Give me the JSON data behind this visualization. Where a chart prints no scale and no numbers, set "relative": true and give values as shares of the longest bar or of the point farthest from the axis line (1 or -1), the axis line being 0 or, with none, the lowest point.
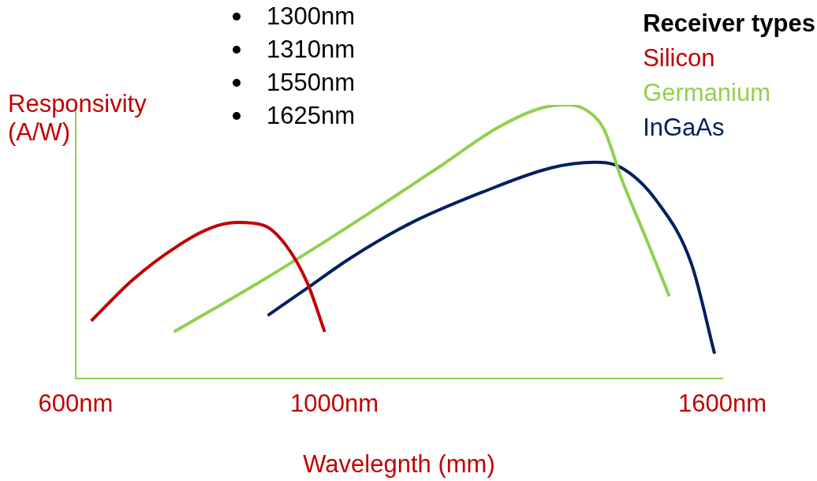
{
  "chart_data": {
    "type": "line",
    "relative": true,
    "xlabel": "Wavelegnth (mm)",
    "ylabel": "Responsivity (A/W)",
    "legend_title": "Receiver types",
    "legend": "top right",
    "grid": false,
    "marker": "none",
    "annotations": [
      "1300nm",
      "1310nm",
      "1550nm",
      "1625nm"
    ],
    "xlim": [
      600,
      1600
    ],
    "xticks": [
      {
        "value": 600,
        "label": "600nm"
      },
      {
        "value": 1000,
        "label": "1000nm"
      },
      {
        "value": 1600,
        "label": "1600nm"
      }
    ],
    "series": [
      {
        "name": "Silicon",
        "color": "#c00000",
        "x": [
          624,
          688,
          755,
          809,
          850,
          890,
          924,
          958,
          985
        ],
        "values": [
          0.21,
          0.36,
          0.48,
          0.55,
          0.57,
          0.56,
          0.49,
          0.35,
          0.17
        ]
      },
      {
        "name": "Germanium",
        "color": "#92d050",
        "x": [
          752,
          890,
          1025,
          1160,
          1255,
          1322,
          1362,
          1390,
          1417,
          1444,
          1484,
          1518
        ],
        "values": [
          0.17,
          0.36,
          0.56,
          0.77,
          0.92,
          0.99,
          1.0,
          0.98,
          0.91,
          0.73,
          0.5,
          0.3
        ]
      },
      {
        "name": "InGaAs",
        "color": "#002060",
        "x": [
          897,
          958,
          1025,
          1120,
          1228,
          1336,
          1403,
          1444,
          1498,
          1552,
          1588
        ],
        "values": [
          0.23,
          0.33,
          0.44,
          0.57,
          0.68,
          0.77,
          0.79,
          0.77,
          0.65,
          0.42,
          0.09
        ]
      }
    ]
  }
}
